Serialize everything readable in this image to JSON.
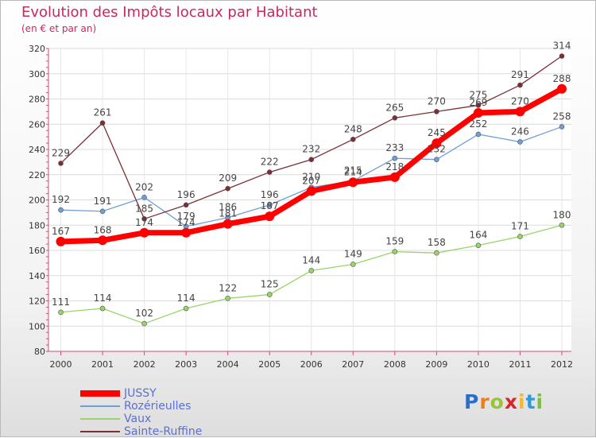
{
  "title": "Evolution des Impôts locaux par Habitant",
  "subtitle": "(en € et par an)",
  "logo": {
    "letters": [
      "P",
      "r",
      "o",
      "x",
      "i",
      "t",
      "i"
    ],
    "colors": [
      "#2f6cc4",
      "#f07d1a",
      "#9ac33a",
      "#d8262f",
      "#f3b82b",
      "#2f9bd6",
      "#7ac143"
    ]
  },
  "chart_data": {
    "type": "line",
    "title": "Evolution des Impôts locaux par Habitant",
    "subtitle": "(en € et par an)",
    "xlabel": "",
    "ylabel": "",
    "x": [
      "2000",
      "2001",
      "2002",
      "2003",
      "2004",
      "2005",
      "2006",
      "2007",
      "2008",
      "2009",
      "2010",
      "2011",
      "2012"
    ],
    "ylim": [
      80,
      320
    ],
    "yticks": [
      80,
      100,
      120,
      140,
      160,
      180,
      200,
      220,
      240,
      260,
      280,
      300,
      320
    ],
    "grid": true,
    "legend_position": "bottom-left",
    "series": [
      {
        "name": "JUSSY",
        "color": "#ff0000",
        "values": [
          167,
          168,
          174,
          174,
          181,
          187,
          207,
          214,
          218,
          245,
          269,
          270,
          288
        ]
      },
      {
        "name": "Rozérieulles",
        "color": "#6f9fd6",
        "values": [
          192,
          191,
          202,
          179,
          186,
          196,
          210,
          215,
          233,
          232,
          252,
          246,
          258
        ]
      },
      {
        "name": "Vaux",
        "color": "#9ad36a",
        "values": [
          111,
          114,
          102,
          114,
          122,
          125,
          144,
          149,
          159,
          158,
          164,
          171,
          180
        ]
      },
      {
        "name": "Sainte-Ruffine",
        "color": "#7a2e36",
        "values": [
          229,
          261,
          185,
          196,
          209,
          222,
          232,
          248,
          265,
          270,
          275,
          291,
          314
        ]
      }
    ]
  }
}
